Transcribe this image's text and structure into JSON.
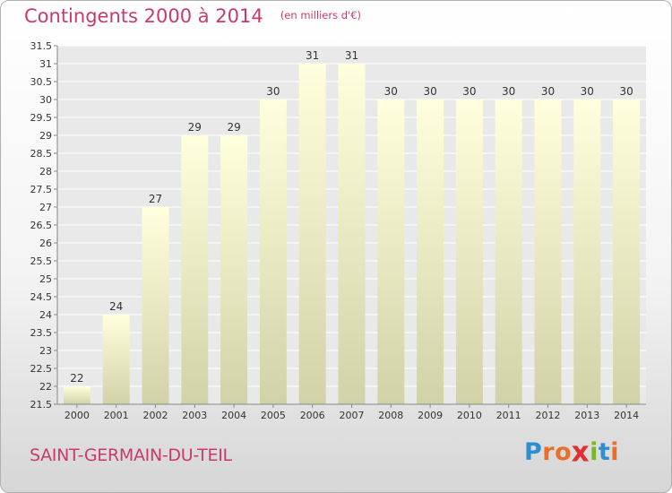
{
  "header": {
    "title": "Contingents 2000 à 2014",
    "subtitle": "(en milliers d'€)"
  },
  "footer": {
    "commune": "SAINT-GERMAIN-DU-TEIL",
    "brand": {
      "letters": [
        "P",
        "r",
        "o",
        "x",
        "i",
        "t",
        "i"
      ],
      "colors": [
        "#2e8fd0",
        "#e8702a",
        "#e8702a",
        "#e03030",
        "#7ab828",
        "#2e8fd0",
        "#e8702a"
      ]
    }
  },
  "colors": {
    "text_accent": "#c83a6e",
    "bar_top": "#ffffdd",
    "bar_bottom": "#d2d2a8",
    "grid": "#ffffff",
    "axis_text": "#333333"
  },
  "chart_data": {
    "type": "bar",
    "categories": [
      "2000",
      "2001",
      "2002",
      "2003",
      "2004",
      "2005",
      "2006",
      "2007",
      "2008",
      "2009",
      "2010",
      "2011",
      "2012",
      "2013",
      "2014"
    ],
    "values": [
      22,
      24,
      27,
      29,
      29,
      30,
      31,
      31,
      30,
      30,
      30,
      30,
      30,
      30,
      30
    ],
    "data_labels": [
      "22",
      "24",
      "27",
      "29",
      "29",
      "30",
      "31",
      "31",
      "30",
      "30",
      "30",
      "30",
      "30",
      "30",
      "30"
    ],
    "ylim": [
      21.5,
      31.5
    ],
    "yticks": [
      "21.5",
      "22",
      "22.5",
      "23",
      "23.5",
      "24",
      "24.5",
      "25",
      "25.5",
      "26",
      "26.5",
      "27",
      "27.5",
      "28",
      "28.5",
      "29",
      "29.5",
      "30",
      "30.5",
      "31",
      "31.5"
    ],
    "grid": true,
    "legend": "none"
  }
}
